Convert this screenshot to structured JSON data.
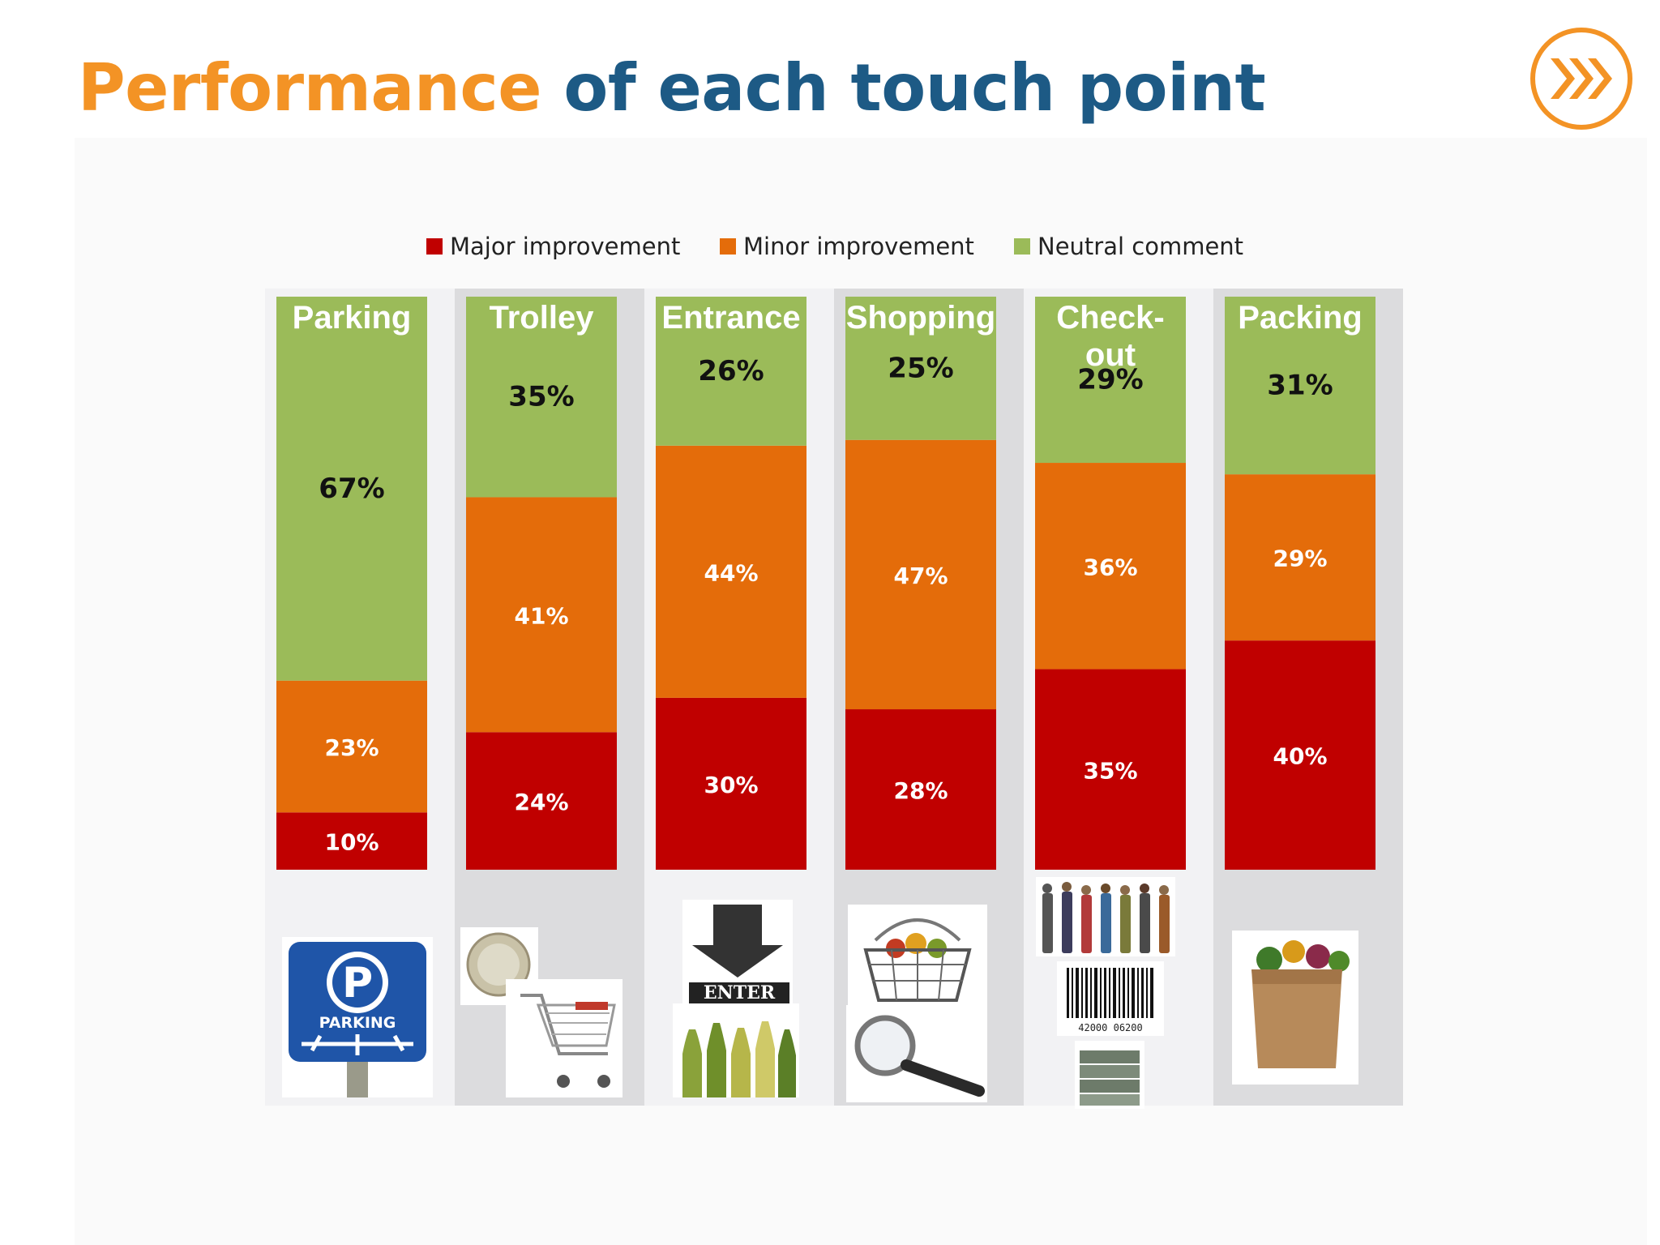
{
  "title": {
    "part1": "Performance",
    "part2": "of each touch point"
  },
  "icons": {
    "logo": "fast-forward-circle-icon"
  },
  "colors": {
    "major": "#c00000",
    "minor": "#e46c0a",
    "neutral": "#9bbb59",
    "title_orange": "#f39325",
    "title_blue": "#1d5a85"
  },
  "legend": [
    {
      "label": "Major improvement",
      "color": "#c00000"
    },
    {
      "label": "Minor improvement",
      "color": "#e46c0a"
    },
    {
      "label": "Neutral comment",
      "color": "#9bbb59"
    }
  ],
  "chart_data": {
    "type": "bar",
    "stacked": true,
    "normalized_percent": true,
    "categories": [
      "Parking",
      "Trolley",
      "Entrance",
      "Shopping",
      "Check-out",
      "Packing"
    ],
    "series": [
      {
        "name": "Major improvement",
        "values": [
          10,
          24,
          30,
          28,
          35,
          40
        ],
        "labels": [
          "10%",
          "24%",
          "30%",
          "28%",
          "35%",
          "40%"
        ]
      },
      {
        "name": "Minor improvement",
        "values": [
          23,
          41,
          44,
          47,
          36,
          29
        ],
        "labels": [
          "23%",
          "41%",
          "44%",
          "47%",
          "36%",
          "29%"
        ]
      },
      {
        "name": "Neutral comment",
        "values": [
          67,
          35,
          26,
          25,
          29,
          31
        ],
        "labels": [
          "67%",
          "35%",
          "26%",
          "25%",
          "29%",
          "31%"
        ]
      }
    ],
    "category_labels": [
      "Parking",
      "Trolley",
      "Entrance",
      "Shopping",
      "Check-\nout",
      "Packing"
    ],
    "legend_position": "top",
    "grid": false
  },
  "pictures": [
    {
      "category": "Parking",
      "items": [
        "parking-sign-icon"
      ],
      "text": "PARKING"
    },
    {
      "category": "Trolley",
      "items": [
        "coin-icon",
        "shopping-cart-icon"
      ]
    },
    {
      "category": "Entrance",
      "items": [
        "enter-arrow-icon",
        "bottles-icon"
      ],
      "text": "ENTER"
    },
    {
      "category": "Shopping",
      "items": [
        "shopping-basket-icon",
        "magnifier-icon"
      ]
    },
    {
      "category": "Check-out",
      "items": [
        "people-queue-icon",
        "barcode-icon",
        "cash-stack-icon"
      ],
      "text": "42000 06200"
    },
    {
      "category": "Packing",
      "items": [
        "grocery-bag-icon"
      ]
    }
  ]
}
